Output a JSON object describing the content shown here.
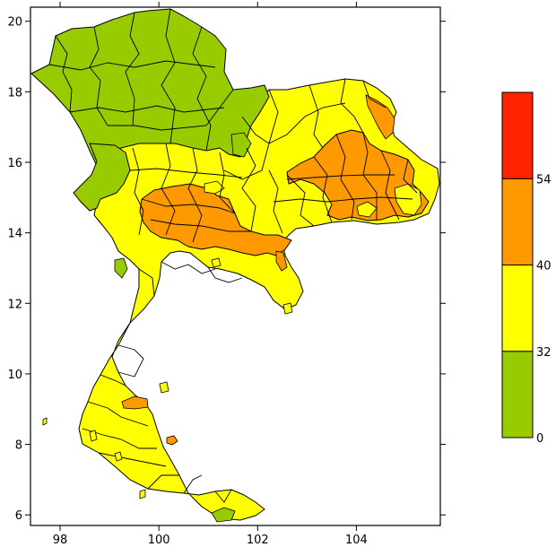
{
  "map": {
    "x_ticks": [
      {
        "value": 98,
        "label": "98"
      },
      {
        "value": 100,
        "label": "100"
      },
      {
        "value": 102,
        "label": "102"
      },
      {
        "value": 104,
        "label": "104"
      }
    ],
    "y_ticks": [
      {
        "value": 20,
        "label": "20"
      },
      {
        "value": 18,
        "label": "18"
      },
      {
        "value": 16,
        "label": "16"
      },
      {
        "value": 14,
        "label": "14"
      },
      {
        "value": 12,
        "label": "12"
      },
      {
        "value": 10,
        "label": "10"
      },
      {
        "value": 8,
        "label": "8"
      },
      {
        "value": 6,
        "label": "6"
      }
    ],
    "x_range": [
      97.4,
      105.7
    ],
    "y_range": [
      5.7,
      20.4
    ]
  },
  "legend": {
    "bins": [
      {
        "range": "0-32",
        "color": "#99cc00"
      },
      {
        "range": "32-40",
        "color": "#ffff00"
      },
      {
        "range": "40-54",
        "color": "#ff9900"
      },
      {
        "range": "54+",
        "color": "#ff2200"
      }
    ],
    "labels": [
      "0",
      "32",
      "40",
      "54"
    ]
  },
  "colors": {
    "low": "#99cc00",
    "mid": "#ffff00",
    "high": "#ff9900",
    "top": "#ff2200"
  }
}
